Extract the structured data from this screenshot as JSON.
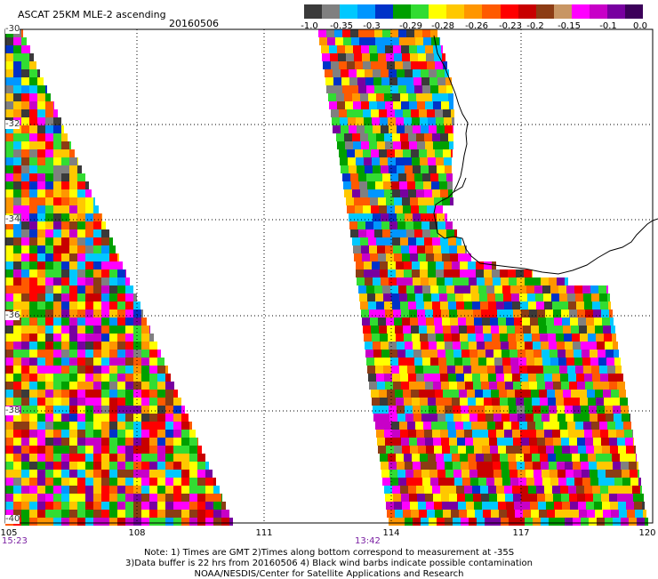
{
  "header": {
    "title": "ASCAT 25KM MLE-2 ascending",
    "date": "20160506"
  },
  "colorbar": {
    "colors": [
      "#3a3a3a",
      "#808080",
      "#00c8ff",
      "#0096ff",
      "#0032c8",
      "#00a000",
      "#32dc32",
      "#ffff00",
      "#ffc800",
      "#ff9600",
      "#ff5a00",
      "#ff0000",
      "#c80000",
      "#8c3c14",
      "#c89664",
      "#ff00ff",
      "#c800c8",
      "#7800a0",
      "#3c005a"
    ],
    "labels": [
      "-1.0",
      "-0.35",
      "-0.3",
      "-0.29",
      "-0.28",
      "-0.26",
      "-0.23",
      "-0.2",
      "-0.15",
      "-0.1",
      "0.0"
    ]
  },
  "axes": {
    "lat_labels": [
      "-30",
      "-32",
      "-34",
      "-36",
      "-38",
      "-40"
    ],
    "lon_labels": [
      "105",
      "108",
      "111",
      "114",
      "117",
      "120"
    ],
    "times": [
      "15:23",
      "13:42"
    ]
  },
  "notes": {
    "line1": "Note: 1) Times are GMT 2)Times along bottom correspond to measurement at -35S",
    "line2": "3)Data buffer is 22 hrs from 20160506 4) Black wind barbs indicate possible contamination",
    "line3": "NOAA/NESDIS/Center for Satellite Applications and Research"
  }
}
